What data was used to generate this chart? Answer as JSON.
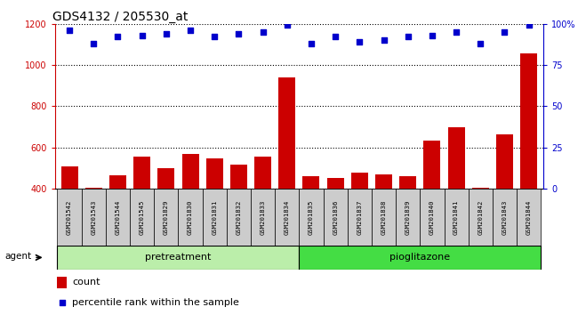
{
  "title": "GDS4132 / 205530_at",
  "samples": [
    "GSM201542",
    "GSM201543",
    "GSM201544",
    "GSM201545",
    "GSM201829",
    "GSM201830",
    "GSM201831",
    "GSM201832",
    "GSM201833",
    "GSM201834",
    "GSM201835",
    "GSM201836",
    "GSM201837",
    "GSM201838",
    "GSM201839",
    "GSM201840",
    "GSM201841",
    "GSM201842",
    "GSM201843",
    "GSM201844"
  ],
  "counts": [
    510,
    405,
    465,
    555,
    500,
    570,
    550,
    520,
    555,
    940,
    460,
    455,
    480,
    470,
    460,
    635,
    700,
    405,
    665,
    1055
  ],
  "percentile_ranks": [
    96,
    88,
    92,
    93,
    94,
    96,
    92,
    94,
    95,
    99,
    88,
    92,
    89,
    90,
    92,
    93,
    95,
    88,
    95,
    99
  ],
  "ylim_left": [
    400,
    1200
  ],
  "ylim_right": [
    0,
    100
  ],
  "yticks_left": [
    400,
    600,
    800,
    1000,
    1200
  ],
  "yticks_right": [
    0,
    25,
    50,
    75,
    100
  ],
  "bar_color": "#cc0000",
  "dot_color": "#0000cc",
  "pretreatment_color": "#bbeeaa",
  "pioglitazone_color": "#44dd44",
  "xlabel_agent": "agent",
  "label_pretreatment": "pretreatment",
  "label_pioglitazone": "pioglitazone",
  "legend_count": "count",
  "legend_percentile": "percentile rank within the sample",
  "background_color": "#ffffff",
  "sample_box_color": "#cccccc",
  "title_fontsize": 10,
  "tick_fontsize": 7,
  "right_axis_color": "#0000cc",
  "left_axis_color": "#cc0000"
}
